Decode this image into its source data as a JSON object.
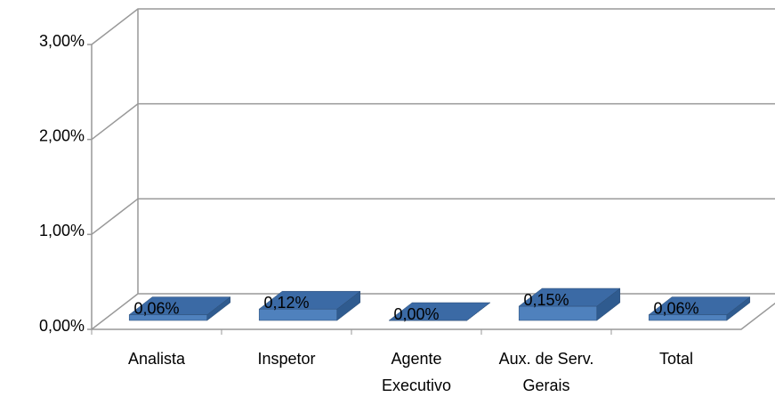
{
  "chart_data": {
    "type": "bar3d",
    "categories": [
      "Analista",
      "Inspetor",
      "Agente Executivo",
      "Aux. de Serv. Gerais",
      "Total"
    ],
    "values": [
      0.06,
      0.12,
      0.0,
      0.15,
      0.06
    ],
    "value_labels": [
      "0,06%",
      "0,12%",
      "0,00%",
      "0,15%",
      "0,06%"
    ],
    "color": "#4f81bd",
    "ylim": [
      0,
      3
    ],
    "yticks": [
      {
        "value": 0,
        "label": "0,00%"
      },
      {
        "value": 1,
        "label": "1,00%"
      },
      {
        "value": 2,
        "label": "2,00%"
      },
      {
        "value": 3,
        "label": "3,00%"
      }
    ],
    "grid": true
  }
}
